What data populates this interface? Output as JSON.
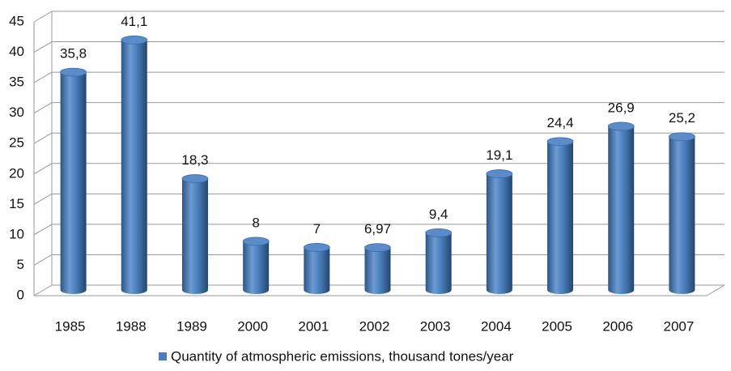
{
  "chart_data": {
    "type": "bar",
    "categories": [
      "1985",
      "1988",
      "1989",
      "2000",
      "2001",
      "2002",
      "2003",
      "2004",
      "2005",
      "2006",
      "2007"
    ],
    "series": [
      {
        "name": "Quantity of atmospheric emissions, thousand tones/year",
        "color": "#4a7ebb",
        "values": [
          35.8,
          41.1,
          18.3,
          8,
          7,
          6.97,
          9.4,
          19.1,
          24.4,
          26.9,
          25.2
        ],
        "value_labels": [
          "35,8",
          "41,1",
          "18,3",
          "8",
          "7",
          "6,97",
          "9,4",
          "19,1",
          "24,4",
          "26,9",
          "25,2"
        ]
      }
    ],
    "ylim": [
      0,
      45
    ],
    "yticks": [
      0,
      5,
      10,
      15,
      20,
      25,
      30,
      35,
      40,
      45
    ],
    "grid": true,
    "legend": "bottom"
  }
}
